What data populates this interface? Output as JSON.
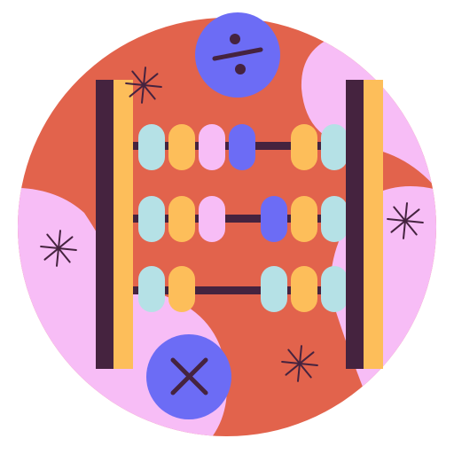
{
  "illustration": {
    "subject": "abacus-icon",
    "colors": {
      "background_circle": "#E2634C",
      "blob_pink": "#F7BDF6",
      "frame_dark": "#45233F",
      "frame_gold": "#FDBE5A",
      "bead_blue": "#B5E1E6",
      "bead_gold": "#FDBE5A",
      "bead_pink": "#F7BDF6",
      "bead_violet": "#6C6CF5",
      "badge": "#6C6CF5",
      "sparkle": "#45233F"
    },
    "rows": [
      {
        "beads": [
          "bead_blue",
          "bead_gold",
          "bead_pink",
          "bead_violet",
          "gap",
          "bead_gold",
          "bead_blue"
        ]
      },
      {
        "beads": [
          "bead_blue",
          "bead_gold",
          "bead_pink",
          "gap",
          "bead_violet",
          "bead_gold",
          "bead_blue"
        ]
      },
      {
        "beads": [
          "bead_blue",
          "bead_gold",
          "gap",
          "bead_blue",
          "bead_gold",
          "bead_blue"
        ]
      }
    ],
    "badges": [
      {
        "icon": "divide-icon"
      },
      {
        "icon": "multiply-icon"
      }
    ],
    "sparkles": [
      "sparkle-top-left",
      "sparkle-left",
      "sparkle-right",
      "sparkle-bottom"
    ]
  }
}
